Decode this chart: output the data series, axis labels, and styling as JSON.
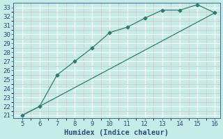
{
  "xlabel": "Humidex (Indice chaleur)",
  "line1_x": [
    5,
    6,
    7,
    8,
    9,
    10,
    11,
    12,
    13,
    14,
    15,
    16
  ],
  "line1_y": [
    21,
    22,
    25.5,
    27,
    28.5,
    30.2,
    30.8,
    31.8,
    32.7,
    32.7,
    33.3,
    32.4
  ],
  "line2_x": [
    5,
    6,
    16
  ],
  "line2_y": [
    21,
    22,
    32.4
  ],
  "line_color": "#2e7d6e",
  "bg_color": "#c5ece6",
  "grid_major_color": "#ffffff",
  "grid_minor_color": "#dcc8c8",
  "xlim": [
    5,
    16
  ],
  "ylim": [
    21,
    33
  ],
  "yticks": [
    21,
    22,
    23,
    24,
    25,
    26,
    27,
    28,
    29,
    30,
    31,
    32,
    33
  ],
  "xticks": [
    5,
    6,
    7,
    8,
    9,
    10,
    11,
    12,
    13,
    14,
    15,
    16
  ],
  "marker": "D",
  "markersize": 2.5,
  "linewidth": 0.9,
  "font_color": "#2b5080",
  "xlabel_fontsize": 7.5,
  "tick_fontsize": 6.5
}
